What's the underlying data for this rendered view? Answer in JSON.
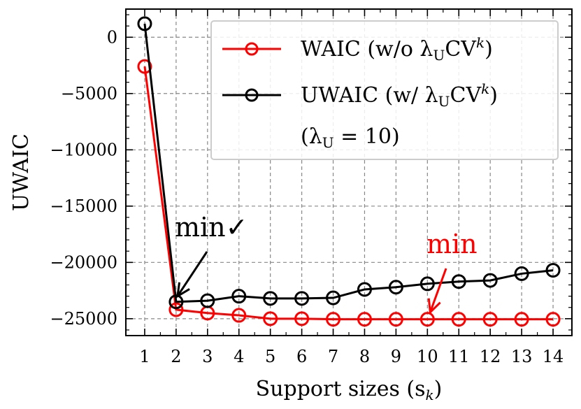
{
  "chart_data": {
    "type": "line",
    "xlabel": "Support sizes (s",
    "xlabel_sub": "k",
    "xlabel_close": ")",
    "ylabel": "UWAIC",
    "x": [
      1,
      2,
      3,
      4,
      5,
      6,
      7,
      8,
      9,
      10,
      11,
      12,
      13,
      14
    ],
    "xlim": [
      0.4,
      14.6
    ],
    "ylim": [
      -26500,
      2500
    ],
    "yticks": [
      0,
      -5000,
      -10000,
      -15000,
      -20000,
      -25000
    ],
    "ytick_labels": [
      "0",
      "−5000",
      "−10000",
      "−15000",
      "−20000",
      "−25000"
    ],
    "grid": true,
    "legend_position": "top-right",
    "series": [
      {
        "name": "WAIC (w/o λUCV^k)",
        "legend_main": "WAIC (w/o λ",
        "legend_sub": "U",
        "legend_mid": "CV",
        "legend_sup": "k",
        "legend_close": ")",
        "color": "#ff0000",
        "values": [
          -2600,
          -24200,
          -24500,
          -24700,
          -25000,
          -25000,
          -25050,
          -25050,
          -25050,
          -25050,
          -25050,
          -25050,
          -25050,
          -25050
        ]
      },
      {
        "name": "UWAIC (w/ λUCV^k)",
        "legend_main": "UWAIC (w/ λ",
        "legend_sub": "U",
        "legend_mid": "CV",
        "legend_sup": "k",
        "legend_close": ")",
        "color": "#000000",
        "values": [
          1200,
          -23500,
          -23400,
          -23000,
          -23200,
          -23200,
          -23150,
          -22400,
          -22200,
          -21900,
          -21700,
          -21600,
          -21000,
          -20700
        ]
      }
    ],
    "legend_extra": {
      "main": "(λ",
      "sub": "U",
      "rest": " = 10)"
    },
    "annotations": [
      {
        "text": "min✓",
        "color": "#000000",
        "target_x": 2,
        "target_series": 1
      },
      {
        "text": "min",
        "color": "#ff0000",
        "target_x": 10,
        "target_series": 0
      }
    ]
  }
}
